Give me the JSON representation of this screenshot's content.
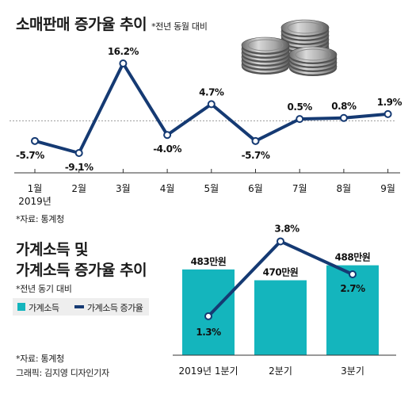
{
  "chart_data": [
    {
      "type": "line",
      "title": "소매판매 증가율 추이",
      "subtitle": "*전년 동월 대비",
      "categories": [
        "1월",
        "2월",
        "3월",
        "4월",
        "5월",
        "6월",
        "7월",
        "8월",
        "9월"
      ],
      "x_sublabel": "2019년",
      "values": [
        -5.7,
        -9.1,
        16.2,
        -4.0,
        4.7,
        -5.7,
        0.5,
        0.8,
        1.9
      ],
      "data_labels": [
        "-5.7%",
        "-9.1%",
        "16.2%",
        "-4.0%",
        "4.7%",
        "-5.7%",
        "0.5%",
        "0.8%",
        "1.9%"
      ],
      "reference_line": 0,
      "ylim": [
        -10.5,
        18
      ],
      "source": "*자료: 통계청",
      "line_color": "#153a73"
    },
    {
      "type": "bar",
      "title": "가계소득 및 가계소득 증가율 추이",
      "title_lines": [
        "가계소득 및",
        "가계소득 증가율 추이"
      ],
      "subtitle": "*전년 동기 대비",
      "categories": [
        "2019년 1분기",
        "2분기",
        "3분기"
      ],
      "series": [
        {
          "name": "가계소득",
          "unit": "만원",
          "values": [
            483,
            470,
            488
          ],
          "color": "#14b5bd",
          "labels": [
            "483만원",
            "470만원",
            "488만원"
          ]
        },
        {
          "name": "가계소득 증가율",
          "unit": "%",
          "values": [
            1.3,
            3.8,
            2.7
          ],
          "color": "#153a73",
          "labels": [
            "1.3%",
            "3.8%",
            "2.7%"
          ]
        }
      ],
      "ylim_bar": [
        380,
        500
      ],
      "ylim_line": [
        0,
        4.5
      ],
      "source": "*자료: 통계청",
      "credit": "그래픽: 김지영 디자인기자"
    }
  ]
}
